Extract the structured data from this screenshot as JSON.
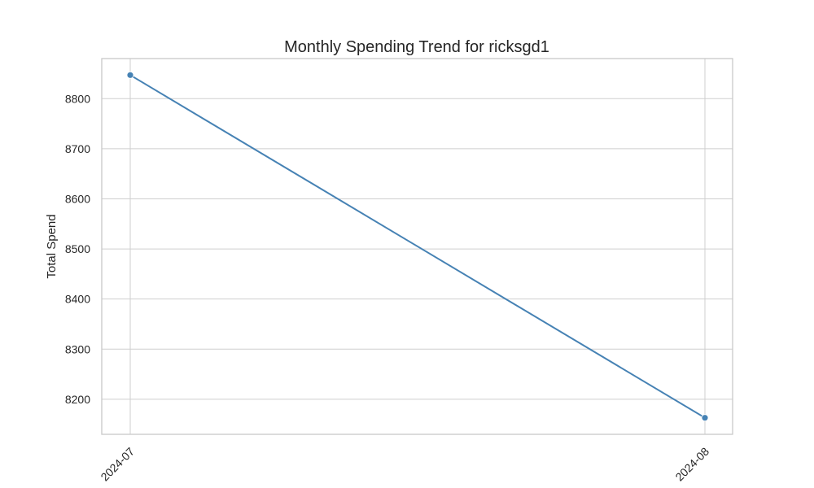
{
  "chart_data": {
    "type": "line",
    "title": "Monthly Spending Trend for ricksgd1",
    "xlabel": "",
    "ylabel": "Total Spend",
    "categories": [
      "2024-07",
      "2024-08"
    ],
    "series": [
      {
        "values": [
          8847,
          8163
        ]
      }
    ],
    "ylim": [
      8130,
      8880
    ],
    "yticks": [
      8200,
      8300,
      8400,
      8500,
      8600,
      8700,
      8800
    ],
    "grid": true,
    "line_color": "#4682b4",
    "marker": "circle"
  }
}
